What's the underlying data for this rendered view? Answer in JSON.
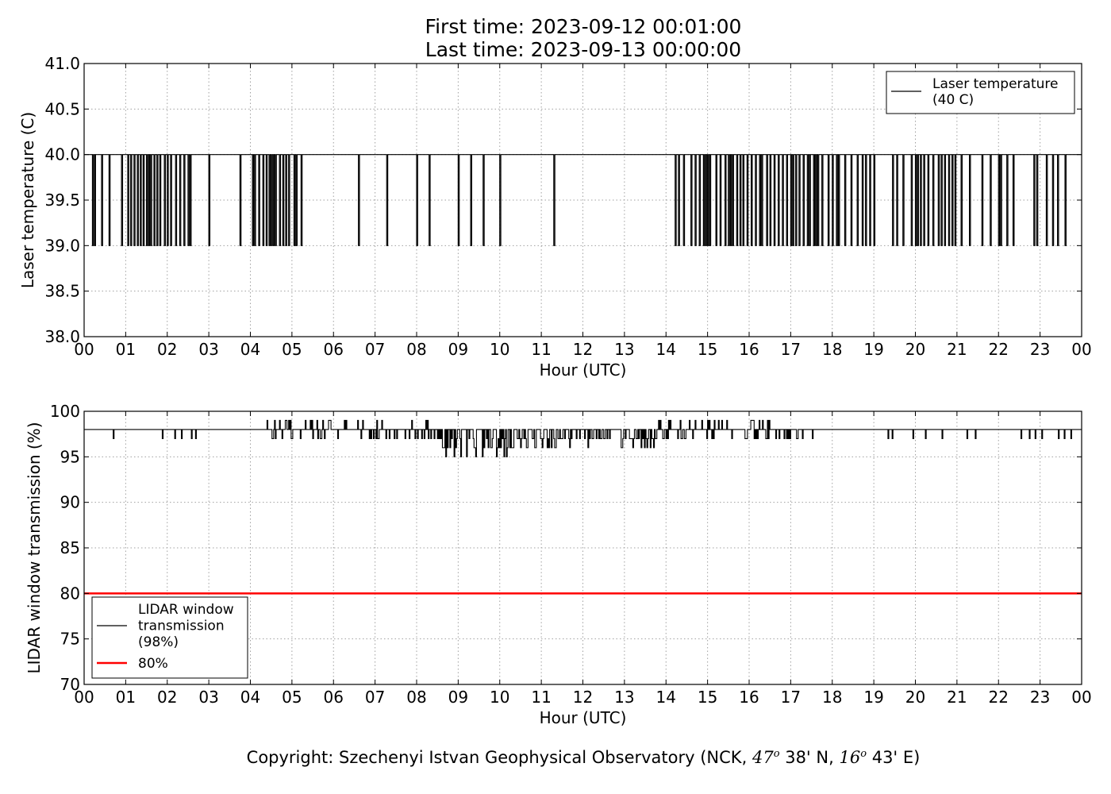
{
  "header": {
    "first_time": "First time: 2023-09-12 00:01:00",
    "last_time": "Last time: 2023-09-13 00:00:00"
  },
  "footer": {
    "copyright_prefix": "Copyright: Szechenyi Istvan Geophysical Observatory (NCK,",
    "lat_deg": "47",
    "lat_min": "38' N,",
    "lon_deg": "16",
    "lon_min": "43' E)",
    "degree_mark": "o"
  },
  "colors": {
    "series": "#000000",
    "threshold": "#ff0000",
    "grid": "#a0a0a0"
  },
  "chart_data": [
    {
      "type": "line",
      "name": "laser-temperature-chart",
      "xlabel": "Hour (UTC)",
      "ylabel": "Laser temperature (C)",
      "xlim": [
        0,
        24
      ],
      "ylim": [
        38.0,
        41.0
      ],
      "x_ticks": [
        "00",
        "01",
        "02",
        "03",
        "04",
        "05",
        "06",
        "07",
        "08",
        "09",
        "10",
        "11",
        "12",
        "13",
        "14",
        "15",
        "16",
        "17",
        "18",
        "19",
        "20",
        "21",
        "22",
        "23",
        "00"
      ],
      "y_ticks": [
        "38.0",
        "38.5",
        "39.0",
        "39.5",
        "40.0",
        "40.5",
        "41.0"
      ],
      "grid": true,
      "legend_position": "upper right",
      "series": [
        {
          "name": "Laser temperature\n(40 C)",
          "baseline": 40.0,
          "dip_value": 39.0,
          "dips_hours": [
            0.2,
            0.25,
            0.42,
            0.6,
            0.9,
            1.05,
            1.12,
            1.2,
            1.28,
            1.35,
            1.42,
            1.5,
            1.55,
            1.6,
            1.68,
            1.75,
            1.82,
            1.93,
            2.0,
            2.08,
            2.2,
            2.3,
            2.4,
            2.5,
            2.55,
            3.0,
            3.75,
            4.05,
            4.1,
            4.2,
            4.3,
            4.38,
            4.45,
            4.5,
            4.55,
            4.6,
            4.7,
            4.78,
            4.85,
            4.92,
            5.05,
            5.1,
            5.22,
            6.6,
            7.28,
            8.0,
            8.3,
            9.0,
            9.3,
            9.6,
            10.0,
            11.3,
            14.22,
            14.3,
            14.42,
            14.6,
            14.7,
            14.8,
            14.9,
            14.95,
            15.0,
            15.05,
            15.2,
            15.3,
            15.42,
            15.5,
            15.55,
            15.6,
            15.7,
            15.78,
            15.85,
            15.95,
            16.05,
            16.15,
            16.25,
            16.3,
            16.42,
            16.5,
            16.6,
            16.7,
            16.8,
            16.9,
            17.0,
            17.05,
            17.12,
            17.2,
            17.3,
            17.4,
            17.45,
            17.55,
            17.6,
            17.65,
            17.75,
            17.9,
            18.0,
            18.1,
            18.15,
            18.3,
            18.45,
            18.6,
            18.72,
            18.8,
            18.9,
            19.0,
            19.45,
            19.55,
            19.7,
            19.9,
            20.0,
            20.05,
            20.12,
            20.2,
            20.3,
            20.42,
            20.55,
            20.62,
            20.7,
            20.8,
            20.88,
            20.95,
            21.1,
            21.3,
            21.6,
            21.8,
            22.0,
            22.05,
            22.2,
            22.35,
            22.85,
            22.92,
            23.15,
            23.3,
            23.42,
            23.6
          ]
        }
      ]
    },
    {
      "type": "line",
      "name": "lidar-window-transmission-chart",
      "xlabel": "Hour (UTC)",
      "ylabel": "LIDAR window transmission (%)",
      "xlim": [
        0,
        24
      ],
      "ylim": [
        70,
        100
      ],
      "x_ticks": [
        "00",
        "01",
        "02",
        "03",
        "04",
        "05",
        "06",
        "07",
        "08",
        "09",
        "10",
        "11",
        "12",
        "13",
        "14",
        "15",
        "16",
        "17",
        "18",
        "19",
        "20",
        "21",
        "22",
        "23",
        "00"
      ],
      "y_ticks": [
        "70",
        "75",
        "80",
        "85",
        "90",
        "95",
        "100"
      ],
      "grid": true,
      "legend_position": "lower left",
      "series": [
        {
          "name": "LIDAR window\ntransmission\n(98%)",
          "baseline": 98,
          "noisy_segments": [
            {
              "from": 4.4,
              "to": 6.9,
              "min": 97,
              "max": 99
            },
            {
              "from": 6.9,
              "to": 8.5,
              "min": 96,
              "max": 99
            },
            {
              "from": 8.5,
              "to": 10.4,
              "min": 95,
              "max": 98
            },
            {
              "from": 10.4,
              "to": 13.8,
              "min": 96,
              "max": 98
            },
            {
              "from": 13.8,
              "to": 16.8,
              "min": 97,
              "max": 99
            },
            {
              "from": 16.8,
              "to": 17.6,
              "min": 97,
              "max": 98
            }
          ],
          "sparse_dips": [
            0.72,
            1.9,
            2.2,
            2.35,
            2.6,
            2.7,
            19.35,
            19.45,
            19.95,
            20.25,
            20.65,
            21.25,
            21.45,
            22.55,
            22.75,
            22.9,
            23.05,
            23.45,
            23.6,
            23.75
          ]
        },
        {
          "name": "80%",
          "constant": 80
        }
      ]
    }
  ]
}
